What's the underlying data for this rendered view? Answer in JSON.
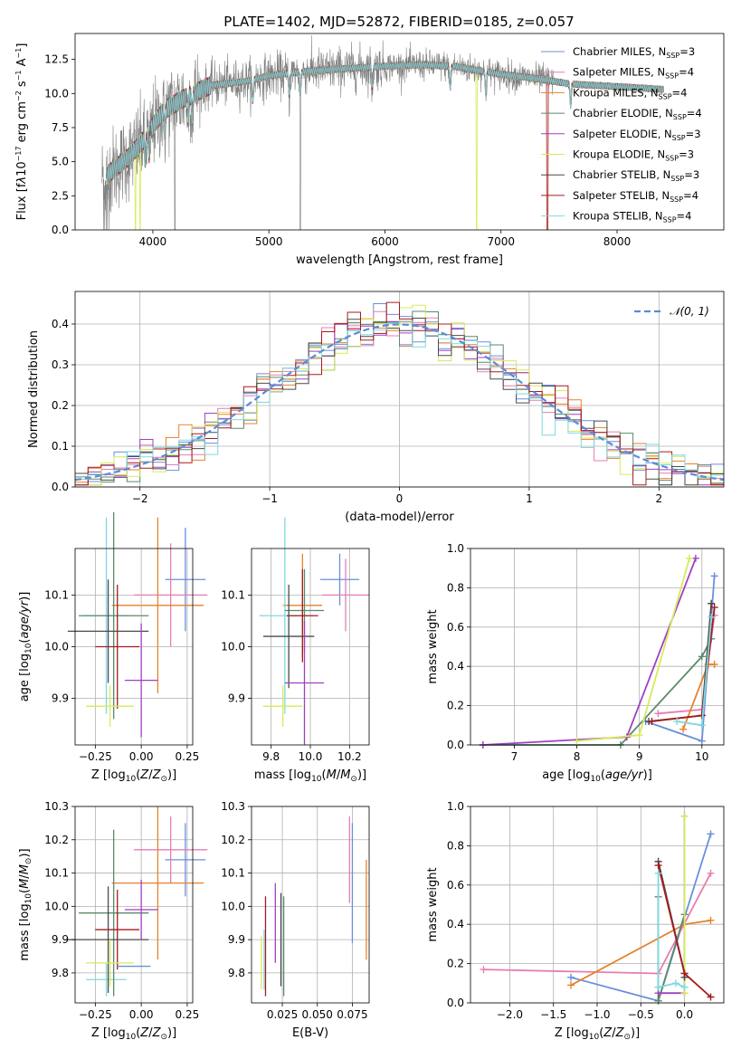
{
  "figure": {
    "title": "PLATE=1402, MJD=52872, FIBERID=0185, z=0.057",
    "colors": {
      "chabrier_miles": "#6a8fdc",
      "salpeter_miles": "#e67db5",
      "kroupa_miles": "#e5822a",
      "chabrier_elodie": "#5b8a6a",
      "salpeter_elodie": "#a23fc4",
      "kroupa_elodie": "#d7ea5a",
      "chabrier_stelib": "#4a4a4a",
      "salpeter_stelib": "#a51c1c",
      "kroupa_stelib": "#7fd8e0",
      "data_grey": "#808080",
      "normal_curve": "#5b8bd6"
    }
  },
  "chart_data": [
    {
      "id": "spectrum",
      "type": "line",
      "title": "PLATE=1402, MJD=52872, FIBERID=0185, z=0.057",
      "xlabel": "wavelength [Angstrom, rest frame]",
      "ylabel_html": "Flux [f<tspan font-style='italic'>λ</tspan>10<tspan dy='-5' font-size='8'>−17</tspan><tspan dy='5'> erg cm</tspan><tspan dy='-5' font-size='8'>−2</tspan><tspan dy='5'> s</tspan><tspan dy='-5' font-size='8'>−1</tspan><tspan dy='5'> A</tspan><tspan dy='-5' font-size='8'>−1</tspan><tspan dy='5'>]</tspan>",
      "xlim": [
        3330,
        8920
      ],
      "ylim": [
        0,
        14.4
      ],
      "xticks": [
        4000,
        5000,
        6000,
        7000,
        8000
      ],
      "yticks": [
        0.0,
        2.5,
        5.0,
        7.5,
        10.0,
        12.5
      ],
      "ytick_labels": [
        "0.0",
        "2.5",
        "5.0",
        "7.5",
        "10.0",
        "12.5"
      ],
      "grid": false,
      "legend_position": "upper-right",
      "legend": [
        {
          "label": "Chabrier MILES, N",
          "sub": "SSP",
          "suffix": "=3",
          "color_key": "chabrier_miles"
        },
        {
          "label": "Salpeter MILES, N",
          "sub": "SSP",
          "suffix": "=4",
          "color_key": "salpeter_miles"
        },
        {
          "label": "Kroupa MILES, N",
          "sub": "SSP",
          "suffix": "=4",
          "color_key": "kroupa_miles"
        },
        {
          "label": "Chabrier ELODIE, N",
          "sub": "SSP",
          "suffix": "=4",
          "color_key": "chabrier_elodie"
        },
        {
          "label": "Salpeter ELODIE, N",
          "sub": "SSP",
          "suffix": "=3",
          "color_key": "salpeter_elodie"
        },
        {
          "label": "Kroupa ELODIE, N",
          "sub": "SSP",
          "suffix": "=3",
          "color_key": "kroupa_elodie"
        },
        {
          "label": "Chabrier STELIB, N",
          "sub": "SSP",
          "suffix": "=3",
          "color_key": "chabrier_stelib"
        },
        {
          "label": "Salpeter STELIB, N",
          "sub": "SSP",
          "suffix": "=4",
          "color_key": "salpeter_stelib"
        },
        {
          "label": "Kroupa STELIB, N",
          "sub": "SSP",
          "suffix": "=4",
          "color_key": "kroupa_stelib"
        }
      ],
      "continuum_anchors": {
        "wavelength": [
          3600,
          3800,
          3950,
          4100,
          4300,
          4500,
          4800,
          5000,
          5300,
          5600,
          6000,
          6300,
          6600,
          7000,
          7300,
          7600,
          8000,
          8400
        ],
        "flux": [
          4.8,
          5.8,
          7.0,
          8.8,
          9.8,
          10.6,
          10.9,
          11.3,
          11.6,
          11.8,
          12.0,
          12.1,
          12.0,
          11.4,
          11.1,
          10.7,
          10.5,
          10.3
        ]
      },
      "model_wavelength_range": [
        3600,
        8400
      ],
      "data_wavelength_range": [
        3560,
        7450
      ],
      "model_dropouts": [
        {
          "color_key": "kroupa_elodie",
          "wavelength": [
            3850,
            3890,
            6790
          ]
        },
        {
          "color_key": "salpeter_stelib",
          "wavelength": [
            7400
          ]
        }
      ]
    },
    {
      "id": "residuals",
      "type": "step",
      "xlabel": "(data-model)/error",
      "ylabel": "Normed distribution",
      "xlim": [
        -2.5,
        2.5
      ],
      "ylim": [
        0,
        0.48
      ],
      "xticks": [
        -2,
        -1,
        0,
        1,
        2
      ],
      "xtick_labels": [
        "−2",
        "−1",
        "0",
        "1",
        "2"
      ],
      "yticks": [
        0.0,
        0.1,
        0.2,
        0.3,
        0.4
      ],
      "ytick_labels": [
        "0.0",
        "0.1",
        "0.2",
        "0.3",
        "0.4"
      ],
      "grid": true,
      "legend_position": "upper-right",
      "legend_label": "𝒩(0, 1)",
      "bin_width": 0.1,
      "n_bins": 50,
      "jitter": 0.025
    },
    {
      "id": "age_vs_Z",
      "type": "errorbar",
      "xlabel_html": "Z [log<tspan dy='3' font-size='9'>10</tspan><tspan dy='-3'>(</tspan><tspan font-style='italic'>Z</tspan>/<tspan font-style='italic'>Z</tspan><tspan dy='3' font-size='9'>⊙</tspan><tspan dy='-3'>)]</tspan>",
      "ylabel_html": "age  [log<tspan dy='3' font-size='9'>10</tspan><tspan dy='-3'>(</tspan><tspan font-style='italic'>age/yr</tspan>)]",
      "xlim": [
        -0.36,
        0.28
      ],
      "ylim": [
        9.81,
        10.19
      ],
      "xticks": [
        -0.25,
        0.0,
        0.25
      ],
      "xtick_labels": [
        "−0.25",
        "0.00",
        "0.25"
      ],
      "yticks": [
        9.9,
        10.0,
        10.1
      ],
      "ytick_labels": [
        "9.9",
        "10.0",
        "10.1"
      ],
      "grid": true,
      "points": [
        {
          "color_key": "chabrier_miles",
          "x": 0.24,
          "xerr": 0.11,
          "y": 10.13,
          "yerr": 0.1
        },
        {
          "color_key": "salpeter_miles",
          "x": 0.16,
          "xerr": 0.2,
          "y": 10.1,
          "yerr": 0.1
        },
        {
          "color_key": "kroupa_miles",
          "x": 0.09,
          "xerr": 0.25,
          "y": 10.08,
          "yerr": 0.17
        },
        {
          "color_key": "kroupa_stelib",
          "x": -0.19,
          "xerr": 0.12,
          "y": 10.06,
          "yerr": 0.19
        },
        {
          "color_key": "chabrier_elodie",
          "x": -0.15,
          "xerr": 0.19,
          "y": 10.06,
          "yerr": 0.2
        },
        {
          "color_key": "salpeter_stelib",
          "x": -0.13,
          "xerr": 0.12,
          "y": 10.0,
          "yerr": 0.12
        },
        {
          "color_key": "chabrier_stelib",
          "x": -0.18,
          "xerr": 0.22,
          "y": 10.03,
          "yerr": 0.1
        },
        {
          "color_key": "salpeter_elodie",
          "x": 0.0,
          "xerr": 0.09,
          "y": 9.935,
          "yerr": 0.11
        },
        {
          "color_key": "kroupa_elodie",
          "x": -0.17,
          "xerr": 0.13,
          "y": 9.885,
          "yerr": 0.04
        }
      ]
    },
    {
      "id": "age_vs_mass",
      "type": "errorbar",
      "xlabel_html": "mass [log<tspan dy='3' font-size='9'>10</tspan><tspan dy='-3'>(</tspan><tspan font-style='italic'>M</tspan>/<tspan font-style='italic'>M</tspan><tspan dy='3' font-size='9'>⊙</tspan><tspan dy='-3'>)]</tspan>",
      "xlim": [
        9.7,
        10.3
      ],
      "ylim": [
        9.81,
        10.19
      ],
      "xticks": [
        9.8,
        10.0,
        10.2
      ],
      "xtick_labels": [
        "9.8",
        "10.0",
        "10.2"
      ],
      "yticks": [
        9.9,
        10.0,
        10.1
      ],
      "ytick_labels": [
        "9.9",
        "10.0",
        "10.1"
      ],
      "grid": true,
      "points": [
        {
          "color_key": "chabrier_miles",
          "x": 10.15,
          "xerr": 0.1,
          "y": 10.13,
          "yerr": 0.05
        },
        {
          "color_key": "salpeter_miles",
          "x": 10.18,
          "xerr": 0.12,
          "y": 10.1,
          "yerr": 0.07
        },
        {
          "color_key": "kroupa_miles",
          "x": 9.96,
          "xerr": 0.1,
          "y": 10.08,
          "yerr": 0.1
        },
        {
          "color_key": "kroupa_stelib",
          "x": 9.87,
          "xerr": 0.13,
          "y": 10.06,
          "yerr": 0.19
        },
        {
          "color_key": "chabrier_elodie",
          "x": 9.97,
          "xerr": 0.1,
          "y": 10.07,
          "yerr": 0.08
        },
        {
          "color_key": "salpeter_stelib",
          "x": 9.96,
          "xerr": 0.08,
          "y": 10.06,
          "yerr": 0.09
        },
        {
          "color_key": "chabrier_stelib",
          "x": 9.89,
          "xerr": 0.13,
          "y": 10.02,
          "yerr": 0.1
        },
        {
          "color_key": "salpeter_elodie",
          "x": 9.97,
          "xerr": 0.1,
          "y": 9.93,
          "yerr": 0.12
        },
        {
          "color_key": "kroupa_elodie",
          "x": 9.86,
          "xerr": 0.1,
          "y": 9.885,
          "yerr": 0.04
        }
      ]
    },
    {
      "id": "mass_weight_vs_age",
      "type": "line",
      "xlabel_html": "age  [log<tspan dy='3' font-size='9'>10</tspan><tspan dy='-3'>(</tspan><tspan font-style='italic'>age/yr</tspan>)]",
      "ylabel": "mass weight",
      "xlim": [
        6.3,
        10.35
      ],
      "ylim": [
        0,
        1
      ],
      "xticks": [
        7,
        8,
        9,
        10
      ],
      "xtick_labels": [
        "7",
        "8",
        "9",
        "10"
      ],
      "yticks": [
        0.0,
        0.2,
        0.4,
        0.6,
        0.8,
        1.0
      ],
      "ytick_labels": [
        "0.0",
        "0.2",
        "0.4",
        "0.6",
        "0.8",
        "1.0"
      ],
      "grid": true,
      "series": [
        {
          "color_key": "chabrier_miles",
          "x": [
            9.1,
            10.0,
            10.2
          ],
          "y": [
            0.12,
            0.02,
            0.86
          ]
        },
        {
          "color_key": "salpeter_miles",
          "x": [
            9.3,
            10.0,
            10.2
          ],
          "y": [
            0.16,
            0.18,
            0.66
          ]
        },
        {
          "color_key": "kroupa_miles",
          "x": [
            9.7,
            10.1,
            10.2
          ],
          "y": [
            0.08,
            0.41,
            0.41
          ]
        },
        {
          "color_key": "chabrier_elodie",
          "x": [
            6.5,
            8.7,
            10.0,
            10.15
          ],
          "y": [
            0.0,
            0.0,
            0.45,
            0.54
          ]
        },
        {
          "color_key": "salpeter_elodie",
          "x": [
            6.5,
            8.8,
            9.9
          ],
          "y": [
            0.0,
            0.04,
            0.95
          ]
        },
        {
          "color_key": "kroupa_elodie",
          "x": [
            8.0,
            9.0,
            9.8
          ],
          "y": [
            0.02,
            0.05,
            0.95
          ]
        },
        {
          "color_key": "chabrier_stelib",
          "x": [
            9.15,
            10.0,
            10.15
          ],
          "y": [
            0.12,
            0.15,
            0.72
          ]
        },
        {
          "color_key": "salpeter_stelib",
          "x": [
            9.2,
            10.0,
            10.2
          ],
          "y": [
            0.12,
            0.15,
            0.7
          ]
        },
        {
          "color_key": "kroupa_stelib",
          "x": [
            9.6,
            10.0,
            10.15
          ],
          "y": [
            0.12,
            0.1,
            0.65
          ]
        }
      ]
    },
    {
      "id": "mass_vs_Z",
      "type": "errorbar",
      "xlabel_html": "Z [log<tspan dy='3' font-size='9'>10</tspan><tspan dy='-3'>(</tspan><tspan font-style='italic'>Z</tspan>/<tspan font-style='italic'>Z</tspan><tspan dy='3' font-size='9'>⊙</tspan><tspan dy='-3'>)]</tspan>",
      "ylabel_html": "mass [log<tspan dy='3' font-size='9'>10</tspan><tspan dy='-3'>(</tspan><tspan font-style='italic'>M</tspan>/<tspan font-style='italic'>M</tspan><tspan dy='3' font-size='9'>⊙</tspan><tspan dy='-3'>)]</tspan>",
      "xlim": [
        -0.36,
        0.28
      ],
      "ylim": [
        9.71,
        10.3
      ],
      "xticks": [
        -0.25,
        0.0,
        0.25
      ],
      "xtick_labels": [
        "−0.25",
        "0.00",
        "0.25"
      ],
      "yticks": [
        9.8,
        9.9,
        10.0,
        10.1,
        10.2,
        10.3
      ],
      "ytick_labels": [
        "9.8",
        "9.9",
        "10.0",
        "10.1",
        "10.2",
        "10.3"
      ],
      "grid": true,
      "points": [
        {
          "color_key": "chabrier_miles",
          "x": 0.24,
          "xerr": 0.11,
          "y": 10.14,
          "yerr": 0.11
        },
        {
          "color_key": "salpeter_miles",
          "x": 0.16,
          "xerr": 0.2,
          "y": 10.17,
          "yerr": 0.1
        },
        {
          "color_key": "kroupa_miles",
          "x": 0.09,
          "xerr": 0.25,
          "y": 10.07,
          "yerr": 0.23
        },
        {
          "color_key": "kroupa_stelib",
          "x": -0.19,
          "xerr": 0.11,
          "y": 9.78,
          "yerr": 0.05
        },
        {
          "color_key": "chabrier_elodie",
          "x": -0.15,
          "xerr": 0.19,
          "y": 9.98,
          "yerr": 0.25
        },
        {
          "color_key": "salpeter_stelib",
          "x": -0.13,
          "xerr": 0.12,
          "y": 9.93,
          "yerr": 0.12
        },
        {
          "color_key": "chabrier_stelib",
          "x": -0.18,
          "xerr": 0.22,
          "y": 9.9,
          "yerr": 0.16
        },
        {
          "color_key": "salpeter_elodie",
          "x": 0.0,
          "xerr": 0.09,
          "y": 9.99,
          "yerr": 0.09
        },
        {
          "color_key": "kroupa_elodie",
          "x": -0.17,
          "xerr": 0.13,
          "y": 9.83,
          "yerr": 0.07
        },
        {
          "color_key": "chabrier_miles",
          "x": -0.04,
          "xerr": 0.09,
          "y": 9.82,
          "yerr": 0.0
        }
      ]
    },
    {
      "id": "mass_vs_EBV",
      "type": "errorbar",
      "xlabel": "E(B-V)",
      "xlim": [
        0.003,
        0.087
      ],
      "ylim": [
        9.71,
        10.3
      ],
      "xticks": [
        0.025,
        0.05,
        0.075
      ],
      "xtick_labels": [
        "0.025",
        "0.050",
        "0.075"
      ],
      "yticks": [
        9.8,
        9.9,
        10.0,
        10.1,
        10.2,
        10.3
      ],
      "ytick_labels": [
        "9.8",
        "9.9",
        "10.0",
        "10.1",
        "10.2",
        "10.3"
      ],
      "grid": true,
      "points": [
        {
          "color_key": "chabrier_miles",
          "x": 0.075,
          "xerr": 0.0,
          "y": 10.07,
          "yerr": 0.18
        },
        {
          "color_key": "salpeter_miles",
          "x": 0.073,
          "xerr": 0.0,
          "y": 10.14,
          "yerr": 0.13
        },
        {
          "color_key": "kroupa_miles",
          "x": 0.085,
          "xerr": 0.0,
          "y": 9.99,
          "yerr": 0.15
        },
        {
          "color_key": "kroupa_stelib",
          "x": 0.012,
          "xerr": 0.0,
          "y": 9.84,
          "yerr": 0.09
        },
        {
          "color_key": "chabrier_elodie",
          "x": 0.026,
          "xerr": 0.0,
          "y": 9.88,
          "yerr": 0.15
        },
        {
          "color_key": "salpeter_stelib",
          "x": 0.013,
          "xerr": 0.0,
          "y": 9.88,
          "yerr": 0.15
        },
        {
          "color_key": "chabrier_stelib",
          "x": 0.024,
          "xerr": 0.0,
          "y": 9.9,
          "yerr": 0.14
        },
        {
          "color_key": "salpeter_elodie",
          "x": 0.02,
          "xerr": 0.0,
          "y": 9.95,
          "yerr": 0.12
        },
        {
          "color_key": "kroupa_elodie",
          "x": 0.01,
          "xerr": 0.0,
          "y": 9.83,
          "yerr": 0.08
        }
      ]
    },
    {
      "id": "mass_weight_vs_Z",
      "type": "line",
      "xlabel_html": "Z [log<tspan dy='3' font-size='9'>10</tspan><tspan dy='-3'>(</tspan><tspan font-style='italic'>Z</tspan>/<tspan font-style='italic'>Z</tspan><tspan dy='3' font-size='9'>⊙</tspan><tspan dy='-3'>)]</tspan>",
      "ylabel": "mass weight",
      "xlim": [
        -2.45,
        0.45
      ],
      "ylim": [
        0,
        1
      ],
      "xticks": [
        -2.0,
        -1.5,
        -1.0,
        -0.5,
        0.0
      ],
      "xtick_labels": [
        "−2.0",
        "−1.5",
        "−1.0",
        "−0.5",
        "0.0"
      ],
      "yticks": [
        0.0,
        0.2,
        0.4,
        0.6,
        0.8,
        1.0
      ],
      "ytick_labels": [
        "0.0",
        "0.2",
        "0.4",
        "0.6",
        "0.8",
        "1.0"
      ],
      "grid": true,
      "series": [
        {
          "color_key": "chabrier_miles",
          "x": [
            -1.3,
            -0.3,
            0.3
          ],
          "y": [
            0.13,
            0.01,
            0.86
          ]
        },
        {
          "color_key": "salpeter_miles",
          "x": [
            -2.3,
            -0.3,
            0.3
          ],
          "y": [
            0.17,
            0.15,
            0.66
          ]
        },
        {
          "color_key": "kroupa_miles",
          "x": [
            -1.3,
            0.0,
            0.3
          ],
          "y": [
            0.09,
            0.4,
            0.42
          ]
        },
        {
          "color_key": "chabrier_elodie",
          "x": [
            -0.3,
            -0.3,
            0.0
          ],
          "y": [
            0.54,
            0.01,
            0.45
          ]
        },
        {
          "color_key": "salpeter_elodie",
          "x": [
            -0.3,
            0.0,
            0.0
          ],
          "y": [
            0.05,
            0.05,
            0.95
          ]
        },
        {
          "color_key": "kroupa_elodie",
          "x": [
            0.0,
            0.0
          ],
          "y": [
            0.05,
            0.95
          ]
        },
        {
          "color_key": "chabrier_stelib",
          "x": [
            -0.3,
            0.0,
            0.0
          ],
          "y": [
            0.72,
            0.15,
            0.13
          ]
        },
        {
          "color_key": "salpeter_stelib",
          "x": [
            -0.3,
            0.0,
            0.3
          ],
          "y": [
            0.7,
            0.15,
            0.03
          ]
        },
        {
          "color_key": "kroupa_stelib",
          "x": [
            -0.3,
            -0.3,
            -0.1,
            0.0
          ],
          "y": [
            0.66,
            0.08,
            0.1,
            0.08
          ]
        }
      ]
    }
  ]
}
